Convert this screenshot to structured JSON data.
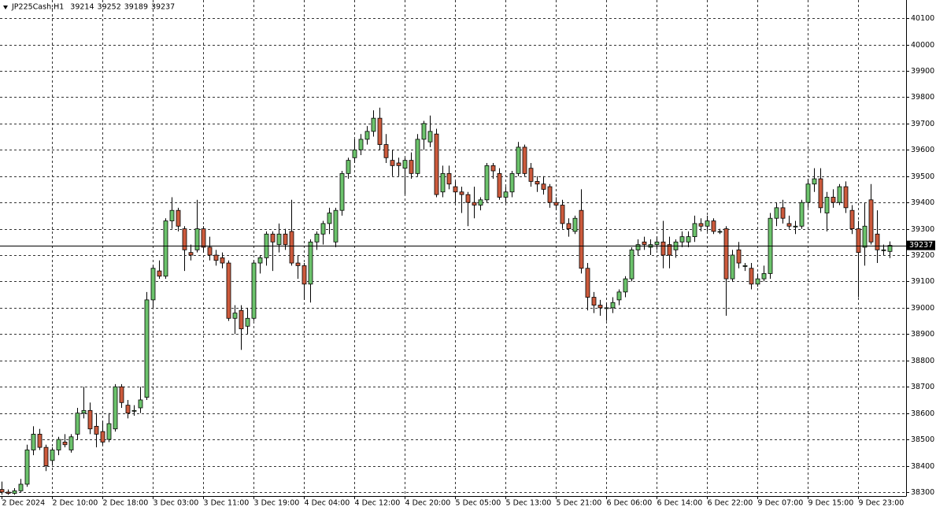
{
  "chart_data": {
    "type": "candlestick",
    "title": "JP225Cash,H1",
    "up_color": "#6cc36c",
    "down_color": "#cc5a3c",
    "grid": true,
    "ylim": [
      38285,
      40169
    ],
    "yticks": [
      38300,
      38400,
      38500,
      38600,
      38700,
      38800,
      38900,
      39000,
      39100,
      39200,
      39300,
      39400,
      39500,
      39600,
      39700,
      39800,
      39900,
      40000,
      40100
    ],
    "candles": [
      {
        "t": "2 Dec 2024",
        "o": 38310,
        "h": 38340,
        "l": 38290,
        "c": 38300
      },
      {
        "t": null,
        "o": 38300,
        "h": 38310,
        "l": 38290,
        "c": 38295
      },
      {
        "t": null,
        "o": 38295,
        "h": 38315,
        "l": 38290,
        "c": 38305
      },
      {
        "t": null,
        "o": 38305,
        "h": 38350,
        "l": 38300,
        "c": 38330
      },
      {
        "t": null,
        "o": 38330,
        "h": 38480,
        "l": 38320,
        "c": 38460
      },
      {
        "t": null,
        "o": 38460,
        "h": 38550,
        "l": 38440,
        "c": 38520
      },
      {
        "t": null,
        "o": 38520,
        "h": 38540,
        "l": 38460,
        "c": 38470
      },
      {
        "t": null,
        "o": 38470,
        "h": 38480,
        "l": 38380,
        "c": 38400
      },
      {
        "t": "2 Dec 10:00",
        "o": 38420,
        "h": 38470,
        "l": 38400,
        "c": 38460
      },
      {
        "t": null,
        "o": 38460,
        "h": 38510,
        "l": 38440,
        "c": 38500
      },
      {
        "t": null,
        "o": 38490,
        "h": 38520,
        "l": 38470,
        "c": 38480
      },
      {
        "t": null,
        "o": 38460,
        "h": 38520,
        "l": 38450,
        "c": 38510
      },
      {
        "t": null,
        "o": 38520,
        "h": 38620,
        "l": 38500,
        "c": 38600
      },
      {
        "t": null,
        "o": 38600,
        "h": 38700,
        "l": 38580,
        "c": 38610
      },
      {
        "t": null,
        "o": 38610,
        "h": 38640,
        "l": 38520,
        "c": 38540
      },
      {
        "t": null,
        "o": 38550,
        "h": 38600,
        "l": 38470,
        "c": 38520
      },
      {
        "t": "2 Dec 18:00",
        "o": 38530,
        "h": 38570,
        "l": 38480,
        "c": 38490
      },
      {
        "t": null,
        "o": 38500,
        "h": 38600,
        "l": 38490,
        "c": 38560
      },
      {
        "t": null,
        "o": 38540,
        "h": 38710,
        "l": 38530,
        "c": 38700
      },
      {
        "t": null,
        "o": 38700,
        "h": 38710,
        "l": 38620,
        "c": 38640
      },
      {
        "t": null,
        "o": 38630,
        "h": 38650,
        "l": 38580,
        "c": 38600
      },
      {
        "t": null,
        "o": 38610,
        "h": 38630,
        "l": 38590,
        "c": 38610
      },
      {
        "t": null,
        "o": 38620,
        "h": 38700,
        "l": 38600,
        "c": 38650
      },
      {
        "t": null,
        "o": 38660,
        "h": 39060,
        "l": 38650,
        "c": 39030
      },
      {
        "t": "3 Dec 03:00",
        "o": 39030,
        "h": 39160,
        "l": 39000,
        "c": 39150
      },
      {
        "t": null,
        "o": 39140,
        "h": 39180,
        "l": 39110,
        "c": 39120
      },
      {
        "t": null,
        "o": 39120,
        "h": 39340,
        "l": 39110,
        "c": 39330
      },
      {
        "t": null,
        "o": 39330,
        "h": 39420,
        "l": 39300,
        "c": 39370
      },
      {
        "t": null,
        "o": 39370,
        "h": 39380,
        "l": 39290,
        "c": 39310
      },
      {
        "t": null,
        "o": 39300,
        "h": 39310,
        "l": 39140,
        "c": 39220
      },
      {
        "t": null,
        "o": 39210,
        "h": 39240,
        "l": 39180,
        "c": 39200
      },
      {
        "t": null,
        "o": 39220,
        "h": 39410,
        "l": 39210,
        "c": 39300
      },
      {
        "t": "3 Dec 11:00",
        "o": 39300,
        "h": 39310,
        "l": 39210,
        "c": 39230
      },
      {
        "t": null,
        "o": 39230,
        "h": 39270,
        "l": 39180,
        "c": 39200
      },
      {
        "t": null,
        "o": 39200,
        "h": 39220,
        "l": 39160,
        "c": 39180
      },
      {
        "t": null,
        "o": 39190,
        "h": 39210,
        "l": 39150,
        "c": 39170
      },
      {
        "t": null,
        "o": 39170,
        "h": 39180,
        "l": 38950,
        "c": 38960
      },
      {
        "t": null,
        "o": 38960,
        "h": 39010,
        "l": 38900,
        "c": 38980
      },
      {
        "t": null,
        "o": 38990,
        "h": 39010,
        "l": 38840,
        "c": 38920
      },
      {
        "t": null,
        "o": 38930,
        "h": 39000,
        "l": 38900,
        "c": 38960
      },
      {
        "t": "3 Dec 19:00",
        "o": 38960,
        "h": 39180,
        "l": 38950,
        "c": 39170
      },
      {
        "t": null,
        "o": 39170,
        "h": 39200,
        "l": 39130,
        "c": 39190
      },
      {
        "t": null,
        "o": 39190,
        "h": 39290,
        "l": 39160,
        "c": 39280
      },
      {
        "t": null,
        "o": 39280,
        "h": 39290,
        "l": 39140,
        "c": 39250
      },
      {
        "t": null,
        "o": 39240,
        "h": 39320,
        "l": 39210,
        "c": 39280
      },
      {
        "t": null,
        "o": 39280,
        "h": 39300,
        "l": 39220,
        "c": 39240
      },
      {
        "t": null,
        "o": 39290,
        "h": 39410,
        "l": 39160,
        "c": 39170
      },
      {
        "t": null,
        "o": 39170,
        "h": 39200,
        "l": 39110,
        "c": 39160
      },
      {
        "t": "4 Dec 04:00",
        "o": 39160,
        "h": 39170,
        "l": 39030,
        "c": 39090
      },
      {
        "t": null,
        "o": 39090,
        "h": 39260,
        "l": 39020,
        "c": 39250
      },
      {
        "t": null,
        "o": 39250,
        "h": 39290,
        "l": 39220,
        "c": 39280
      },
      {
        "t": null,
        "o": 39280,
        "h": 39330,
        "l": 39240,
        "c": 39320
      },
      {
        "t": null,
        "o": 39320,
        "h": 39380,
        "l": 39280,
        "c": 39360
      },
      {
        "t": null,
        "o": 39250,
        "h": 39380,
        "l": 39230,
        "c": 39370
      },
      {
        "t": null,
        "o": 39370,
        "h": 39520,
        "l": 39350,
        "c": 39510
      },
      {
        "t": null,
        "o": 39510,
        "h": 39570,
        "l": 39490,
        "c": 39560
      },
      {
        "t": "4 Dec 12:00",
        "o": 39570,
        "h": 39640,
        "l": 39550,
        "c": 39600
      },
      {
        "t": null,
        "o": 39600,
        "h": 39660,
        "l": 39580,
        "c": 39640
      },
      {
        "t": null,
        "o": 39640,
        "h": 39690,
        "l": 39620,
        "c": 39670
      },
      {
        "t": null,
        "o": 39670,
        "h": 39750,
        "l": 39650,
        "c": 39720
      },
      {
        "t": null,
        "o": 39720,
        "h": 39760,
        "l": 39600,
        "c": 39620
      },
      {
        "t": null,
        "o": 39620,
        "h": 39660,
        "l": 39550,
        "c": 39570
      },
      {
        "t": null,
        "o": 39560,
        "h": 39600,
        "l": 39500,
        "c": 39540
      },
      {
        "t": null,
        "o": 39550,
        "h": 39570,
        "l": 39500,
        "c": 39540
      },
      {
        "t": "4 Dec 20:00",
        "o": 39530,
        "h": 39570,
        "l": 39430,
        "c": 39560
      },
      {
        "t": null,
        "o": 39560,
        "h": 39590,
        "l": 39490,
        "c": 39510
      },
      {
        "t": null,
        "o": 39510,
        "h": 39660,
        "l": 39500,
        "c": 39640
      },
      {
        "t": null,
        "o": 39640,
        "h": 39710,
        "l": 39600,
        "c": 39700
      },
      {
        "t": null,
        "o": 39630,
        "h": 39730,
        "l": 39610,
        "c": 39670
      },
      {
        "t": null,
        "o": 39660,
        "h": 39680,
        "l": 39420,
        "c": 39430
      },
      {
        "t": null,
        "o": 39440,
        "h": 39540,
        "l": 39420,
        "c": 39510
      },
      {
        "t": null,
        "o": 39510,
        "h": 39540,
        "l": 39450,
        "c": 39470
      },
      {
        "t": "5 Dec 05:00",
        "o": 39460,
        "h": 39480,
        "l": 39400,
        "c": 39440
      },
      {
        "t": null,
        "o": 39440,
        "h": 39460,
        "l": 39360,
        "c": 39430
      },
      {
        "t": null,
        "o": 39430,
        "h": 39440,
        "l": 39310,
        "c": 39400
      },
      {
        "t": null,
        "o": 39400,
        "h": 39460,
        "l": 39340,
        "c": 39390
      },
      {
        "t": null,
        "o": 39390,
        "h": 39420,
        "l": 39370,
        "c": 39410
      },
      {
        "t": null,
        "o": 39410,
        "h": 39550,
        "l": 39400,
        "c": 39540
      },
      {
        "t": null,
        "o": 39540,
        "h": 39550,
        "l": 39490,
        "c": 39520
      },
      {
        "t": null,
        "o": 39510,
        "h": 39530,
        "l": 39410,
        "c": 39420
      },
      {
        "t": "5 Dec 13:00",
        "o": 39420,
        "h": 39460,
        "l": 39400,
        "c": 39440
      },
      {
        "t": null,
        "o": 39440,
        "h": 39520,
        "l": 39420,
        "c": 39510
      },
      {
        "t": null,
        "o": 39510,
        "h": 39630,
        "l": 39500,
        "c": 39610
      },
      {
        "t": null,
        "o": 39610,
        "h": 39620,
        "l": 39500,
        "c": 39510
      },
      {
        "t": null,
        "o": 39530,
        "h": 39550,
        "l": 39460,
        "c": 39480
      },
      {
        "t": null,
        "o": 39480,
        "h": 39500,
        "l": 39440,
        "c": 39470
      },
      {
        "t": null,
        "o": 39470,
        "h": 39500,
        "l": 39430,
        "c": 39450
      },
      {
        "t": null,
        "o": 39460,
        "h": 39470,
        "l": 39380,
        "c": 39400
      },
      {
        "t": "5 Dec 21:00",
        "o": 39400,
        "h": 39420,
        "l": 39370,
        "c": 39390
      },
      {
        "t": null,
        "o": 39390,
        "h": 39410,
        "l": 39300,
        "c": 39320
      },
      {
        "t": null,
        "o": 39320,
        "h": 39340,
        "l": 39270,
        "c": 39300
      },
      {
        "t": null,
        "o": 39290,
        "h": 39350,
        "l": 39280,
        "c": 39340
      },
      {
        "t": null,
        "o": 39370,
        "h": 39450,
        "l": 39130,
        "c": 39150
      },
      {
        "t": null,
        "o": 39150,
        "h": 39170,
        "l": 38990,
        "c": 39040
      },
      {
        "t": null,
        "o": 39040,
        "h": 39060,
        "l": 38980,
        "c": 39010
      },
      {
        "t": null,
        "o": 39010,
        "h": 39030,
        "l": 38970,
        "c": 39000
      },
      {
        "t": "6 Dec 06:00",
        "o": 39000,
        "h": 39020,
        "l": 38950,
        "c": 39000
      },
      {
        "t": null,
        "o": 39000,
        "h": 39040,
        "l": 38980,
        "c": 39020
      },
      {
        "t": null,
        "o": 39030,
        "h": 39070,
        "l": 39010,
        "c": 39060
      },
      {
        "t": null,
        "o": 39060,
        "h": 39120,
        "l": 39040,
        "c": 39110
      },
      {
        "t": null,
        "o": 39110,
        "h": 39230,
        "l": 39100,
        "c": 39220
      },
      {
        "t": null,
        "o": 39220,
        "h": 39260,
        "l": 39200,
        "c": 39240
      },
      {
        "t": null,
        "o": 39250,
        "h": 39270,
        "l": 39220,
        "c": 39240
      },
      {
        "t": null,
        "o": 39230,
        "h": 39260,
        "l": 39200,
        "c": 39240
      },
      {
        "t": "6 Dec 14:00",
        "o": 39240,
        "h": 39270,
        "l": 39220,
        "c": 39250
      },
      {
        "t": null,
        "o": 39250,
        "h": 39330,
        "l": 39150,
        "c": 39200
      },
      {
        "t": null,
        "o": 39240,
        "h": 39270,
        "l": 39150,
        "c": 39200
      },
      {
        "t": null,
        "o": 39220,
        "h": 39260,
        "l": 39190,
        "c": 39250
      },
      {
        "t": null,
        "o": 39250,
        "h": 39290,
        "l": 39230,
        "c": 39270
      },
      {
        "t": null,
        "o": 39250,
        "h": 39290,
        "l": 39230,
        "c": 39270
      },
      {
        "t": null,
        "o": 39270,
        "h": 39350,
        "l": 39250,
        "c": 39320
      },
      {
        "t": null,
        "o": 39320,
        "h": 39340,
        "l": 39290,
        "c": 39310
      },
      {
        "t": "6 Dec 22:00",
        "o": 39310,
        "h": 39350,
        "l": 39290,
        "c": 39330
      },
      {
        "t": null,
        "o": 39330,
        "h": 39340,
        "l": 39280,
        "c": 39290
      },
      {
        "t": null,
        "o": 39290,
        "h": 39300,
        "l": 39280,
        "c": 39290
      },
      {
        "t": null,
        "o": 39300,
        "h": 39310,
        "l": 38970,
        "c": 39110
      },
      {
        "t": null,
        "o": 39110,
        "h": 39220,
        "l": 39100,
        "c": 39200
      },
      {
        "t": null,
        "o": 39220,
        "h": 39250,
        "l": 39150,
        "c": 39170
      },
      {
        "t": null,
        "o": 39160,
        "h": 39170,
        "l": 39140,
        "c": 39160
      },
      {
        "t": null,
        "o": 39150,
        "h": 39170,
        "l": 39070,
        "c": 39090
      },
      {
        "t": "9 Dec 07:00",
        "o": 39090,
        "h": 39130,
        "l": 39080,
        "c": 39110
      },
      {
        "t": null,
        "o": 39110,
        "h": 39160,
        "l": 39100,
        "c": 39130
      },
      {
        "t": null,
        "o": 39130,
        "h": 39360,
        "l": 39110,
        "c": 39340
      },
      {
        "t": null,
        "o": 39340,
        "h": 39400,
        "l": 39310,
        "c": 39380
      },
      {
        "t": null,
        "o": 39380,
        "h": 39410,
        "l": 39320,
        "c": 39340
      },
      {
        "t": null,
        "o": 39320,
        "h": 39350,
        "l": 39300,
        "c": 39310
      },
      {
        "t": null,
        "o": 39310,
        "h": 39330,
        "l": 39280,
        "c": 39310
      },
      {
        "t": null,
        "o": 39310,
        "h": 39410,
        "l": 39300,
        "c": 39400
      },
      {
        "t": "9 Dec 15:00",
        "o": 39400,
        "h": 39490,
        "l": 39380,
        "c": 39470
      },
      {
        "t": null,
        "o": 39470,
        "h": 39530,
        "l": 39440,
        "c": 39490
      },
      {
        "t": null,
        "o": 39490,
        "h": 39530,
        "l": 39360,
        "c": 39380
      },
      {
        "t": null,
        "o": 39360,
        "h": 39440,
        "l": 39290,
        "c": 39420
      },
      {
        "t": null,
        "o": 39420,
        "h": 39450,
        "l": 39380,
        "c": 39400
      },
      {
        "t": null,
        "o": 39400,
        "h": 39470,
        "l": 39390,
        "c": 39460
      },
      {
        "t": null,
        "o": 39460,
        "h": 39480,
        "l": 39360,
        "c": 39380
      },
      {
        "t": null,
        "o": 39370,
        "h": 39390,
        "l": 39280,
        "c": 39300
      },
      {
        "t": "9 Dec 23:00",
        "o": 39300,
        "h": 39330,
        "l": 39040,
        "c": 39210
      },
      {
        "t": null,
        "o": 39230,
        "h": 39400,
        "l": 39160,
        "c": 39310
      },
      {
        "t": null,
        "o": 39410,
        "h": 39470,
        "l": 39240,
        "c": 39250
      },
      {
        "t": null,
        "o": 39280,
        "h": 39370,
        "l": 39170,
        "c": 39220
      },
      {
        "t": null,
        "o": 39220,
        "h": 39240,
        "l": 39200,
        "c": 39220
      },
      {
        "t": null,
        "o": 39214,
        "h": 39252,
        "l": 39189,
        "c": 39237
      }
    ]
  }
}
